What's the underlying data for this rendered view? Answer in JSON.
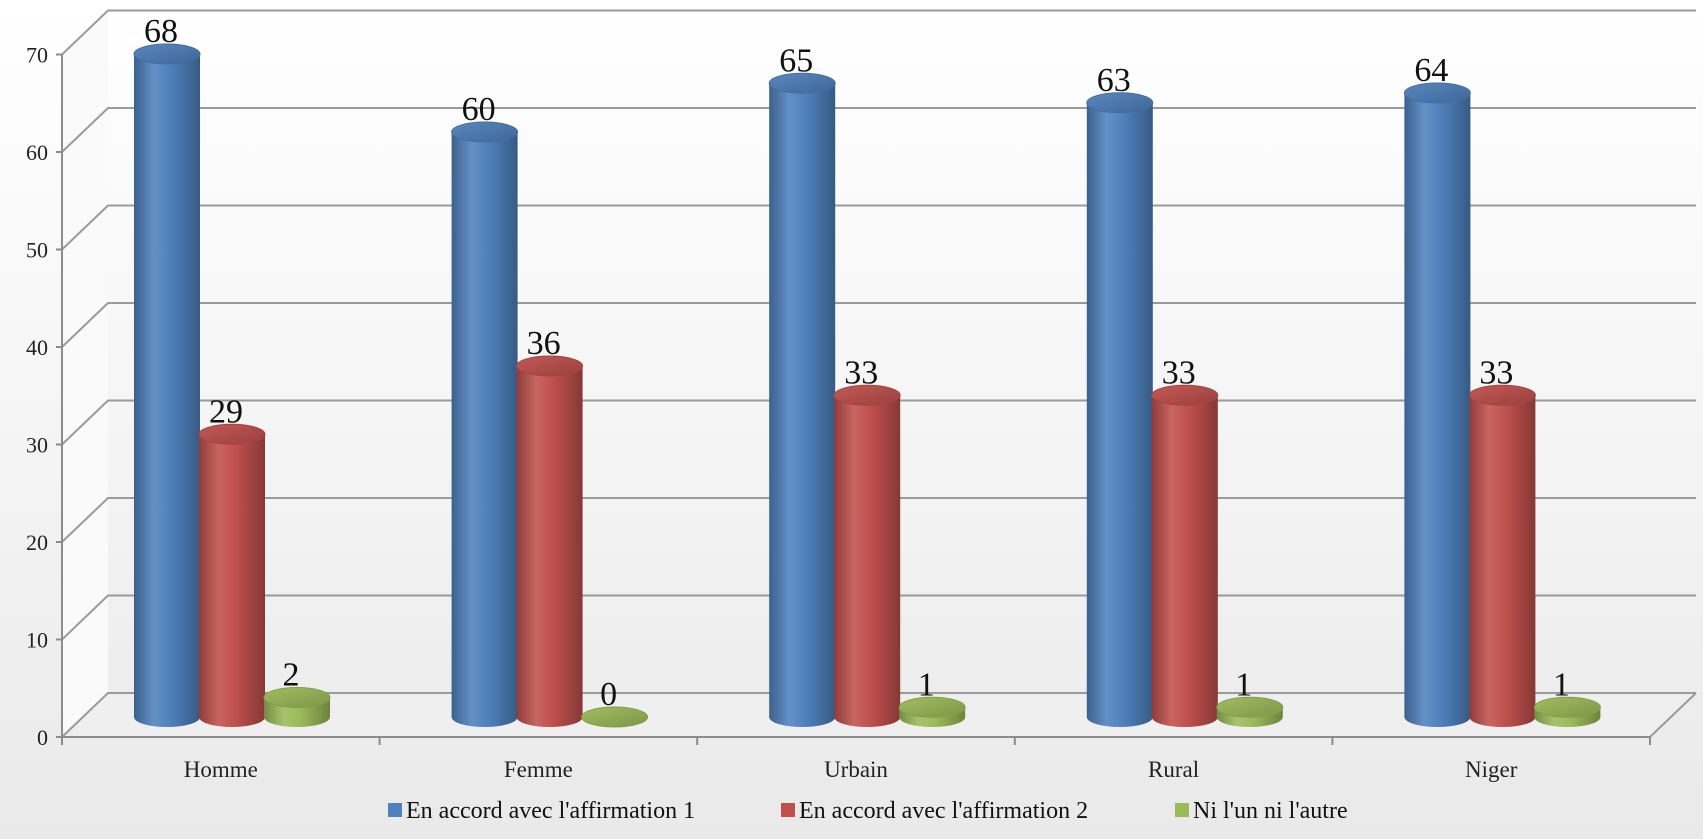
{
  "chart_data": {
    "type": "bar",
    "title": "",
    "xlabel": "",
    "ylabel": "",
    "categories": [
      "Homme",
      "Femme",
      "Urbain",
      "Rural",
      "Niger"
    ],
    "series": [
      {
        "name": "En accord avec l'affirmation 1",
        "values": [
          68,
          60,
          65,
          63,
          64
        ],
        "color": "#4f81bd"
      },
      {
        "name": "En accord avec l'affirmation 2",
        "values": [
          29,
          36,
          33,
          33,
          33
        ],
        "color": "#c0504d"
      },
      {
        "name": "Ni l'un ni l'autre",
        "values": [
          2,
          0,
          1,
          1,
          1
        ],
        "color": "#9bbb59"
      }
    ],
    "ylim": [
      0,
      70
    ],
    "yticks": [
      "0",
      "10",
      "20",
      "30",
      "40",
      "50",
      "60",
      "70"
    ],
    "grid": true,
    "legend_position": "bottom",
    "style": "3d-cylinder"
  }
}
